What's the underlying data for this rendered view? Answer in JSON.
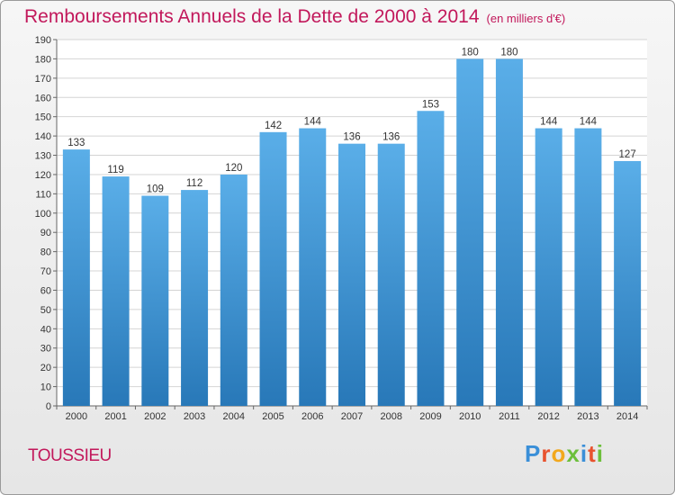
{
  "header": {
    "title": "Remboursements Annuels de la Dette de 2000 à 2014",
    "unit": "(en milliers d'€)"
  },
  "footer": {
    "commune": "TOUSSIEU",
    "logo": "Proxiti"
  },
  "colors": {
    "bar_top": "#5aaee8",
    "bar_bottom": "#2878b8",
    "accent": "#c2185b",
    "grid": "#d4d4d4"
  },
  "chart_data": {
    "type": "bar",
    "title": "Remboursements Annuels de la Dette de 2000 à 2014",
    "subtitle": "(en milliers d'€)",
    "categories": [
      "2000",
      "2001",
      "2002",
      "2003",
      "2004",
      "2005",
      "2006",
      "2007",
      "2008",
      "2009",
      "2010",
      "2011",
      "2012",
      "2013",
      "2014"
    ],
    "values": [
      133,
      119,
      109,
      112,
      120,
      142,
      144,
      136,
      136,
      153,
      180,
      180,
      144,
      144,
      127
    ],
    "ylim": [
      0,
      190
    ],
    "ytick_step": 10,
    "xlabel": "",
    "ylabel": "",
    "grid": true,
    "data_labels": true
  }
}
